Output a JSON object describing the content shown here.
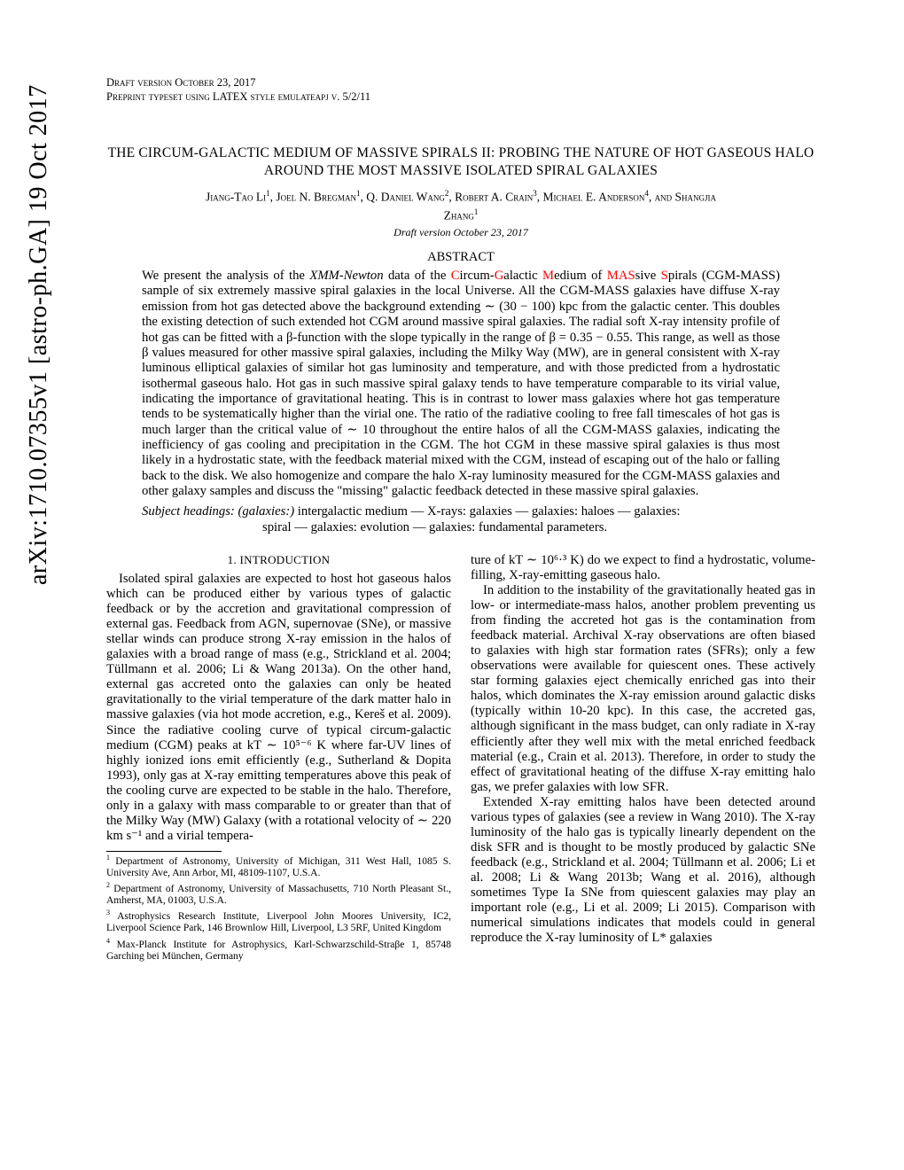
{
  "arxiv": "arXiv:1710.07355v1  [astro-ph.GA]  19 Oct 2017",
  "header": {
    "line1": "Draft version October 23, 2017",
    "line2": "Preprint typeset using LATEX style emulateapj v. 5/2/11"
  },
  "title": "THE CIRCUM-GALACTIC MEDIUM OF MASSIVE SPIRALS II: PROBING THE NATURE OF HOT GASEOUS HALO AROUND THE MOST MASSIVE ISOLATED SPIRAL GALAXIES",
  "draft_line": "Draft version October 23, 2017",
  "abstract_heading": "ABSTRACT",
  "abstract_prefix": "We present the analysis of the ",
  "abstract_xmm": "XMM-Newton",
  "abstract_mid": " data of the ",
  "red_C": "C",
  "t1": "ircum-",
  "red_G": "G",
  "t2": "alactic ",
  "red_M": "M",
  "t3": "edium of ",
  "red_MAS": "MAS",
  "t4": "sive ",
  "red_S": "S",
  "abstract_rest": "pirals (CGM-MASS) sample of six extremely massive spiral galaxies in the local Universe. All the CGM-MASS galaxies have diffuse X-ray emission from hot gas detected above the background extending ∼ (30 − 100) kpc from the galactic center. This doubles the existing detection of such extended hot CGM around massive spiral galaxies. The radial soft X-ray intensity profile of hot gas can be fitted with a β-function with the slope typically in the range of β = 0.35 − 0.55. This range, as well as those β values measured for other massive spiral galaxies, including the Milky Way (MW), are in general consistent with X-ray luminous elliptical galaxies of similar hot gas luminosity and temperature, and with those predicted from a hydrostatic isothermal gaseous halo. Hot gas in such massive spiral galaxy tends to have temperature comparable to its virial value, indicating the importance of gravitational heating. This is in contrast to lower mass galaxies where hot gas temperature tends to be systematically higher than the virial one. The ratio of the radiative cooling to free fall timescales of hot gas is much larger than the critical value of ∼ 10 throughout the entire halos of all the CGM-MASS galaxies, indicating the inefficiency of gas cooling and precipitation in the CGM. The hot CGM in these massive spiral galaxies is thus most likely in a hydrostatic state, with the feedback material mixed with the CGM, instead of escaping out of the halo or falling back to the disk. We also homogenize and compare the halo X-ray luminosity measured for the CGM-MASS galaxies and other galaxy samples and discuss the \"missing\" galactic feedback detected in these massive spiral galaxies.",
  "subject_label": "Subject headings: (galaxies:)",
  "subject_text": " intergalactic medium — X-rays: galaxies — galaxies: haloes — galaxies:",
  "subject_line2": "spiral — galaxies: evolution — galaxies: fundamental parameters.",
  "section1": "1.  INTRODUCTION",
  "col1_p1": "Isolated spiral galaxies are expected to host hot gaseous halos which can be produced either by various types of galactic feedback or by the accretion and gravitational compression of external gas. Feedback from AGN, supernovae (SNe), or massive stellar winds can produce strong X-ray emission in the halos of galaxies with a broad range of mass (e.g., Strickland et al. 2004; Tüllmann et al. 2006; Li & Wang 2013a). On the other hand, external gas accreted onto the galaxies can only be heated gravitationally to the virial temperature of the dark matter halo in massive galaxies (via hot mode accretion, e.g., Kereš et al. 2009). Since the radiative cooling curve of typical circum-galactic medium (CGM) peaks at kT ∼ 10⁵⁻⁶ K where far-UV lines of highly ionized ions emit efficiently (e.g., Sutherland & Dopita 1993), only gas at X-ray emitting temperatures above this peak of the cooling curve are expected to be stable in the halo. Therefore, only in a galaxy with mass comparable to or greater than that of the Milky Way (MW) Galaxy (with a rotational velocity of ∼ 220 km s⁻¹ and a virial tempera-",
  "col2_p1": "ture of kT ∼ 10⁶·³ K) do we expect to find a hydrostatic, volume-filling, X-ray-emitting gaseous halo.",
  "col2_p2": "In addition to the instability of the gravitationally heated gas in low- or intermediate-mass halos, another problem preventing us from finding the accreted hot gas is the contamination from feedback material. Archival X-ray observations are often biased to galaxies with high star formation rates (SFRs); only a few observations were available for quiescent ones. These actively star forming galaxies eject chemically enriched gas into their halos, which dominates the X-ray emission around galactic disks (typically within 10-20 kpc). In this case, the accreted gas, although significant in the mass budget, can only radiate in X-ray efficiently after they well mix with the metal enriched feedback material (e.g., Crain et al. 2013). Therefore, in order to study the effect of gravitational heating of the diffuse X-ray emitting halo gas, we prefer galaxies with low SFR.",
  "col2_p3": "Extended X-ray emitting halos have been detected around various types of galaxies (see a review in Wang 2010). The X-ray luminosity of the halo gas is typically linearly dependent on the disk SFR and is thought to be mostly produced by galactic SNe feedback (e.g., Strickland et al. 2004; Tüllmann et al. 2006; Li et al. 2008; Li & Wang 2013b; Wang et al. 2016), although sometimes Type Ia SNe from quiescent galaxies may play an important role (e.g., Li et al. 2009; Li  2015). Comparison with numerical simulations indicates that models could in general reproduce the X-ray luminosity of L* galaxies",
  "footnotes": {
    "f1": "Department of Astronomy, University of Michigan, 311 West Hall, 1085 S. University Ave, Ann Arbor, MI, 48109-1107, U.S.A.",
    "f2": "Department of Astronomy, University of Massachusetts, 710 North Pleasant St., Amherst, MA, 01003, U.S.A.",
    "f3": "Astrophysics Research Institute, Liverpool John Moores University, IC2, Liverpool Science Park, 146 Brownlow Hill, Liverpool, L3 5RF, United Kingdom",
    "f4": "Max-Planck Institute for Astrophysics, Karl-Schwarzschild-Straβe 1, 85748 Garching bei München, Germany"
  }
}
